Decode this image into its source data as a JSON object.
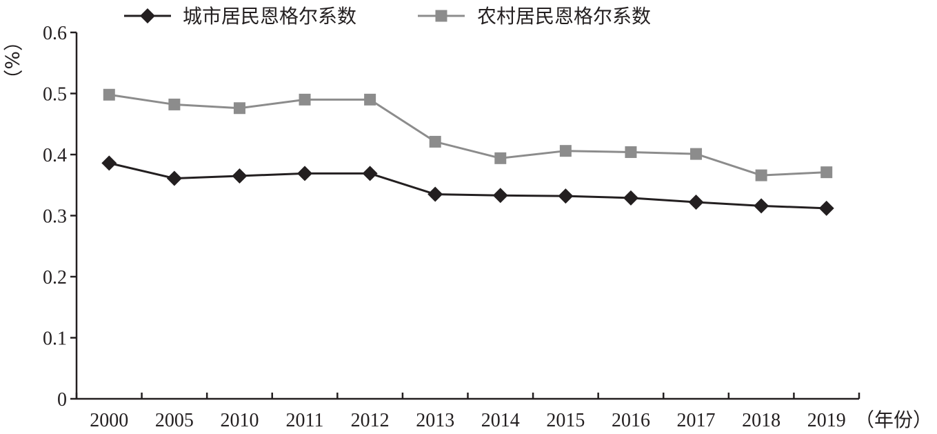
{
  "chart_data": {
    "type": "line",
    "categories": [
      "2000",
      "2005",
      "2010",
      "2011",
      "2012",
      "2013",
      "2014",
      "2015",
      "2016",
      "2017",
      "2018",
      "2019"
    ],
    "series": [
      {
        "name": "城市居民恩格尔系数",
        "color": "#231f20",
        "marker": "diamond",
        "values": [
          0.386,
          0.361,
          0.365,
          0.369,
          0.369,
          0.335,
          0.333,
          0.332,
          0.329,
          0.322,
          0.316,
          0.312
        ]
      },
      {
        "name": "农村居民恩格尔系数",
        "color": "#8c8c8c",
        "marker": "square",
        "values": [
          0.498,
          0.482,
          0.476,
          0.49,
          0.49,
          0.421,
          0.394,
          0.406,
          0.404,
          0.401,
          0.366,
          0.371
        ]
      }
    ],
    "yticks": [
      "0",
      "0.1",
      "0.2",
      "0.3",
      "0.4",
      "0.5",
      "0.6"
    ],
    "ylim": [
      0,
      0.6
    ],
    "ylabel": "（%）",
    "xlabel": "（年份）",
    "legend_position": "top",
    "grid": false
  }
}
